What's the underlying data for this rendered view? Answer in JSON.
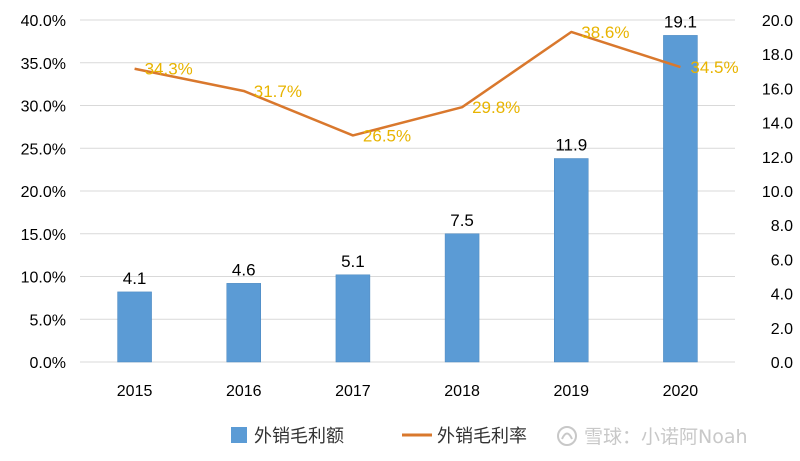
{
  "colors": {
    "bar": "#5b9bd5",
    "bar_stroke": "#4a86bd",
    "line": "#d9782d",
    "line_label": "#e8b400",
    "grid": "#d9d9d9",
    "watermark": "#c8c8c8"
  },
  "chart_data": {
    "type": "bar",
    "categories": [
      "2015",
      "2016",
      "2017",
      "2018",
      "2019",
      "2020"
    ],
    "series": [
      {
        "name": "外销毛利额",
        "type": "bar",
        "axis": "right",
        "values": [
          4.1,
          4.6,
          5.1,
          7.5,
          11.9,
          19.1
        ]
      },
      {
        "name": "外销毛利率",
        "type": "line",
        "axis": "left",
        "values": [
          34.3,
          31.7,
          26.5,
          29.8,
          38.6,
          34.5
        ]
      }
    ],
    "bar_labels": [
      "4.1",
      "4.6",
      "5.1",
      "7.5",
      "11.9",
      "19.1"
    ],
    "line_labels": [
      "34.3%",
      "31.7%",
      "26.5%",
      "29.8%",
      "38.6%",
      "34.5%"
    ],
    "left_axis": {
      "range": [
        0,
        40
      ],
      "ticks": [
        0,
        5,
        10,
        15,
        20,
        25,
        30,
        35,
        40
      ],
      "tick_labels": [
        "0.0%",
        "5.0%",
        "10.0%",
        "15.0%",
        "20.0%",
        "25.0%",
        "30.0%",
        "35.0%",
        "40.0%"
      ]
    },
    "right_axis": {
      "range": [
        0,
        20
      ],
      "ticks": [
        0,
        2,
        4,
        6,
        8,
        10,
        12,
        14,
        16,
        18,
        20
      ],
      "tick_labels": [
        "0.0",
        "2.0",
        "4.0",
        "6.0",
        "8.0",
        "10.0",
        "12.0",
        "14.0",
        "16.0",
        "18.0",
        "20.0"
      ]
    },
    "grid": true,
    "legend": {
      "placement": "bottom-center",
      "items": [
        "外销毛利额",
        "外销毛利率"
      ]
    }
  },
  "watermark": {
    "icon": "snowball-logo-icon",
    "text": "雪球：小诺阿Noah"
  }
}
